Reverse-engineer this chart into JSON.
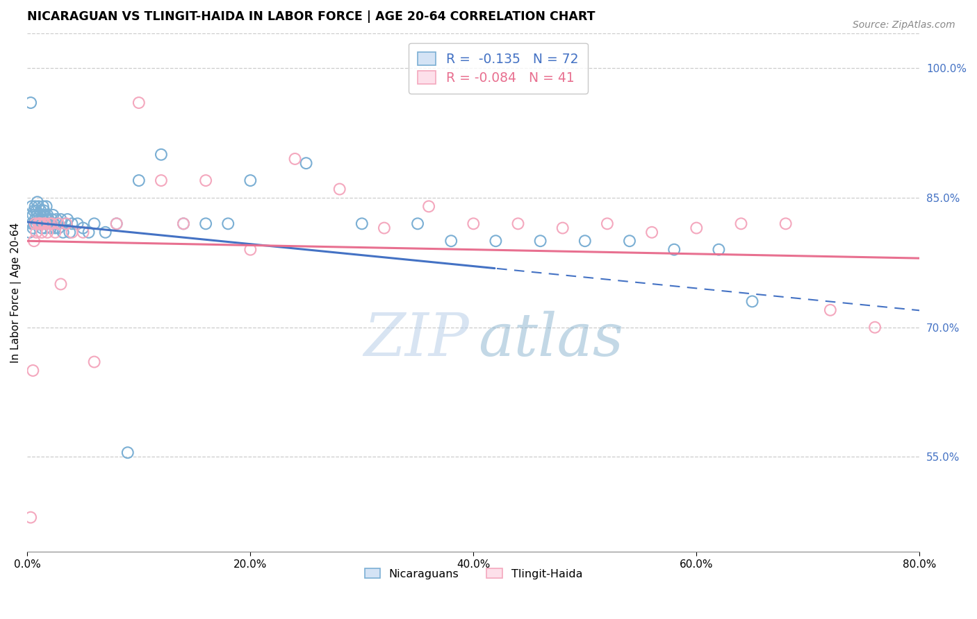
{
  "title": "NICARAGUAN VS TLINGIT-HAIDA IN LABOR FORCE | AGE 20-64 CORRELATION CHART",
  "source": "Source: ZipAtlas.com",
  "ylabel": "In Labor Force | Age 20-64",
  "xlabel_ticks": [
    "0.0%",
    "20.0%",
    "40.0%",
    "60.0%",
    "80.0%"
  ],
  "xtick_vals": [
    0.0,
    0.2,
    0.4,
    0.6,
    0.8
  ],
  "ylabel_right_ticks": [
    "100.0%",
    "85.0%",
    "70.0%",
    "55.0%"
  ],
  "ytick_vals": [
    1.0,
    0.85,
    0.7,
    0.55
  ],
  "xlim": [
    0.0,
    0.8
  ],
  "ylim": [
    0.44,
    1.04
  ],
  "background_color": "#ffffff",
  "grid_color": "#cccccc",
  "blue_scatter_color": "#7bafd4",
  "pink_scatter_color": "#f4a8be",
  "blue_line_color": "#4472c4",
  "pink_line_color": "#e87090",
  "legend_R_blue": " -0.135",
  "legend_N_blue": "72",
  "legend_R_pink": "-0.084",
  "legend_N_pink": "41",
  "watermark_zip": "ZIP",
  "watermark_atlas": "atlas",
  "blue_x": [
    0.002,
    0.003,
    0.004,
    0.004,
    0.005,
    0.005,
    0.006,
    0.006,
    0.007,
    0.007,
    0.008,
    0.008,
    0.009,
    0.009,
    0.01,
    0.01,
    0.011,
    0.011,
    0.012,
    0.012,
    0.013,
    0.013,
    0.014,
    0.014,
    0.015,
    0.015,
    0.016,
    0.016,
    0.017,
    0.017,
    0.018,
    0.018,
    0.019,
    0.02,
    0.021,
    0.022,
    0.023,
    0.024,
    0.025,
    0.026,
    0.027,
    0.028,
    0.03,
    0.032,
    0.034,
    0.036,
    0.038,
    0.04,
    0.045,
    0.05,
    0.055,
    0.06,
    0.07,
    0.08,
    0.09,
    0.1,
    0.12,
    0.14,
    0.16,
    0.18,
    0.2,
    0.25,
    0.3,
    0.35,
    0.38,
    0.42,
    0.46,
    0.5,
    0.54,
    0.58,
    0.62,
    0.65
  ],
  "blue_y": [
    0.81,
    0.96,
    0.82,
    0.84,
    0.815,
    0.83,
    0.82,
    0.835,
    0.825,
    0.84,
    0.82,
    0.835,
    0.83,
    0.845,
    0.82,
    0.84,
    0.825,
    0.83,
    0.835,
    0.82,
    0.825,
    0.815,
    0.83,
    0.84,
    0.835,
    0.82,
    0.815,
    0.83,
    0.84,
    0.825,
    0.82,
    0.83,
    0.825,
    0.82,
    0.815,
    0.825,
    0.83,
    0.82,
    0.815,
    0.825,
    0.82,
    0.815,
    0.825,
    0.81,
    0.82,
    0.825,
    0.81,
    0.82,
    0.82,
    0.815,
    0.81,
    0.82,
    0.81,
    0.82,
    0.555,
    0.87,
    0.9,
    0.82,
    0.82,
    0.82,
    0.87,
    0.89,
    0.82,
    0.82,
    0.8,
    0.8,
    0.8,
    0.8,
    0.8,
    0.79,
    0.79,
    0.73
  ],
  "pink_x": [
    0.003,
    0.005,
    0.006,
    0.007,
    0.008,
    0.01,
    0.011,
    0.012,
    0.013,
    0.015,
    0.016,
    0.018,
    0.02,
    0.022,
    0.025,
    0.028,
    0.03,
    0.035,
    0.04,
    0.05,
    0.06,
    0.08,
    0.1,
    0.12,
    0.14,
    0.16,
    0.2,
    0.24,
    0.28,
    0.32,
    0.36,
    0.4,
    0.44,
    0.48,
    0.52,
    0.56,
    0.6,
    0.64,
    0.68,
    0.72,
    0.76
  ],
  "pink_y": [
    0.48,
    0.65,
    0.8,
    0.82,
    0.81,
    0.82,
    0.82,
    0.82,
    0.81,
    0.82,
    0.82,
    0.81,
    0.82,
    0.82,
    0.81,
    0.82,
    0.75,
    0.82,
    0.81,
    0.81,
    0.66,
    0.82,
    0.96,
    0.87,
    0.82,
    0.87,
    0.79,
    0.895,
    0.86,
    0.815,
    0.84,
    0.82,
    0.82,
    0.815,
    0.82,
    0.81,
    0.815,
    0.82,
    0.82,
    0.72,
    0.7
  ]
}
